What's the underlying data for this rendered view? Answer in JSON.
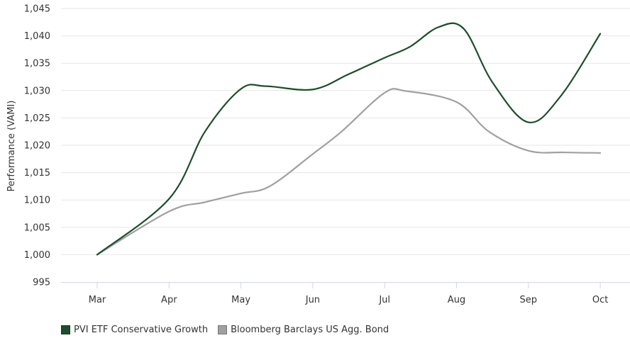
{
  "chart_data": {
    "type": "line",
    "title": "",
    "xlabel": "",
    "ylabel": "Performance (VAMI)",
    "categories": [
      "Mar",
      "Apr",
      "May",
      "Jun",
      "Jul",
      "Aug",
      "Sep",
      "Oct"
    ],
    "ylim": [
      995,
      1045
    ],
    "yticks": [
      "995",
      "1,000",
      "1,005",
      "1,010",
      "1,015",
      "1,020",
      "1,025",
      "1,030",
      "1,035",
      "1,040",
      "1,045"
    ],
    "grid": "horizontal",
    "legend_position": "bottom-left",
    "series": [
      {
        "name": "PVI ETF Conservative Growth",
        "color": "#1e4d2b",
        "points": [
          [
            0.0,
            1000.0
          ],
          [
            1.0,
            1010.2
          ],
          [
            1.5,
            1022.5
          ],
          [
            2.0,
            1030.3
          ],
          [
            2.35,
            1030.8
          ],
          [
            3.0,
            1030.2
          ],
          [
            3.5,
            1033.0
          ],
          [
            4.0,
            1036.0
          ],
          [
            4.35,
            1038.0
          ],
          [
            4.75,
            1041.6
          ],
          [
            5.1,
            1041.3
          ],
          [
            5.5,
            1031.5
          ],
          [
            6.0,
            1024.2
          ],
          [
            6.45,
            1029.0
          ],
          [
            7.0,
            1040.4
          ]
        ]
      },
      {
        "name": "Bloomberg Barclays US Agg. Bond",
        "color": "#a0a0a0",
        "points": [
          [
            0.0,
            1000.0
          ],
          [
            1.0,
            1007.9
          ],
          [
            1.5,
            1009.6
          ],
          [
            2.0,
            1011.2
          ],
          [
            2.4,
            1012.5
          ],
          [
            3.0,
            1018.4
          ],
          [
            3.4,
            1022.5
          ],
          [
            4.0,
            1029.6
          ],
          [
            4.3,
            1029.9
          ],
          [
            5.0,
            1027.9
          ],
          [
            5.45,
            1022.5
          ],
          [
            6.0,
            1019.0
          ],
          [
            6.5,
            1018.7
          ],
          [
            7.0,
            1018.6
          ]
        ]
      }
    ]
  }
}
